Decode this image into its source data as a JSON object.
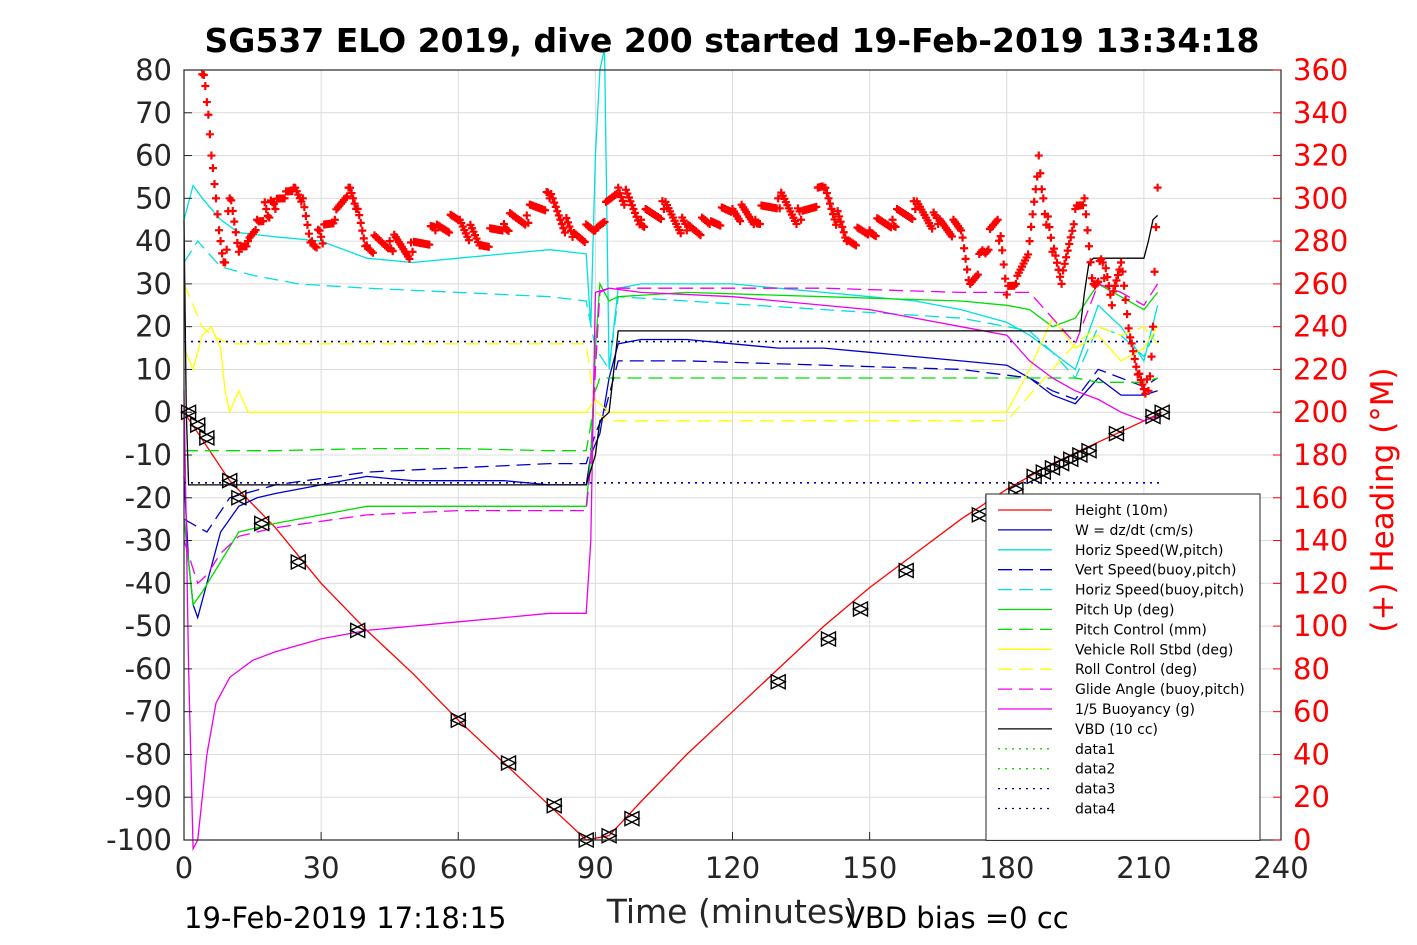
{
  "chart_data": {
    "type": "line",
    "title": "SG537 ELO 2019, dive 200 started 19-Feb-2019 13:34:18",
    "xlabel": "Time (minutes)",
    "ylabel_right": "(+) Heading (°M)",
    "xlim": [
      0,
      240
    ],
    "ylim_left": [
      -100,
      80
    ],
    "ylim_right": [
      0,
      360
    ],
    "x_ticks": [
      "0",
      "30",
      "60",
      "90",
      "120",
      "150",
      "180",
      "210",
      "240"
    ],
    "y_ticks_left": [
      "80",
      "70",
      "60",
      "50",
      "40",
      "30",
      "20",
      "10",
      "0",
      "-10",
      "-20",
      "-30",
      "-40",
      "-50",
      "-60",
      "-70",
      "-80",
      "-90",
      "-100"
    ],
    "y_ticks_right": [
      "360",
      "340",
      "320",
      "300",
      "280",
      "260",
      "240",
      "220",
      "200",
      "180",
      "160",
      "140",
      "120",
      "100",
      "80",
      "60",
      "40",
      "20",
      "0"
    ],
    "grid": true,
    "legend_position": "bottom-right",
    "footer_left": "19-Feb-2019 17:18:15",
    "footer_right": "VBD bias =0 cc",
    "series": [
      {
        "name": "Height (10m)",
        "color": "#ff0000",
        "dash": "solid",
        "x": [
          0,
          10,
          20,
          30,
          40,
          50,
          60,
          70,
          80,
          88,
          93,
          100,
          110,
          120,
          130,
          140,
          150,
          160,
          170,
          180,
          190,
          200,
          210,
          214
        ],
        "y": [
          0,
          -16,
          -27,
          -40,
          -51,
          -61,
          -72,
          -82,
          -92,
          -100,
          -99,
          -91,
          -80,
          -70,
          -60,
          -50,
          -41,
          -33,
          -25,
          -18,
          -12,
          -7,
          -2,
          0
        ]
      },
      {
        "name": "W = dz/dt (cm/s)",
        "color": "#0000cc",
        "dash": "solid",
        "x": [
          0,
          1,
          2,
          3,
          5,
          8,
          12,
          16,
          20,
          30,
          40,
          50,
          60,
          70,
          80,
          88,
          89,
          91,
          93,
          95,
          100,
          110,
          120,
          130,
          140,
          150,
          160,
          170,
          180,
          185,
          190,
          195,
          200,
          205,
          210,
          213
        ],
        "y": [
          -15,
          -35,
          -45,
          -48,
          -40,
          -28,
          -22,
          -20,
          -19,
          -17,
          -15,
          -16,
          -16,
          -16,
          -17,
          -17,
          -10,
          -5,
          8,
          16,
          17,
          17,
          16,
          15,
          15,
          14,
          13,
          12,
          11,
          8,
          4,
          2,
          8,
          4,
          4,
          5
        ]
      },
      {
        "name": "Horiz Speed(W,pitch)",
        "color": "#00e0e0",
        "dash": "solid",
        "x": [
          0,
          2,
          4,
          8,
          12,
          20,
          30,
          40,
          50,
          60,
          70,
          80,
          88,
          89,
          90,
          91,
          92,
          93,
          95,
          100,
          110,
          120,
          130,
          140,
          150,
          160,
          170,
          180,
          185,
          190,
          195,
          200,
          205,
          210,
          213
        ],
        "y": [
          45,
          53,
          50,
          45,
          42,
          41,
          40,
          36,
          35,
          36,
          37,
          38,
          37,
          20,
          60,
          80,
          85,
          10,
          29,
          30,
          30,
          30,
          29,
          28,
          27,
          26,
          24,
          21,
          18,
          14,
          10,
          25,
          20,
          12,
          25
        ]
      },
      {
        "name": "Vert Speed(buoy,pitch)",
        "color": "#0000cc",
        "dash": "long",
        "x": [
          0,
          5,
          10,
          20,
          40,
          60,
          80,
          88,
          90,
          92,
          95,
          110,
          140,
          170,
          185,
          190,
          195,
          200,
          205,
          210,
          213
        ],
        "y": [
          -25,
          -28,
          -20,
          -17,
          -14,
          -13,
          -12,
          -12,
          -5,
          0,
          12,
          12,
          11,
          10,
          8,
          5,
          3,
          10,
          8,
          6,
          8
        ]
      },
      {
        "name": "Horiz Speed(buoy,pitch)",
        "color": "#00e0e0",
        "dash": "long",
        "x": [
          0,
          3,
          8,
          15,
          25,
          40,
          60,
          80,
          88,
          90,
          93,
          95,
          110,
          140,
          170,
          185,
          190,
          195,
          200,
          205,
          210,
          213
        ],
        "y": [
          35,
          40,
          34,
          32,
          30,
          29,
          28,
          27,
          26,
          15,
          10,
          27,
          26,
          24,
          22,
          19,
          14,
          8,
          20,
          18,
          13,
          20
        ]
      },
      {
        "name": "Pitch Up (deg)",
        "color": "#00dd00",
        "dash": "solid",
        "x": [
          0,
          2,
          4,
          8,
          12,
          20,
          30,
          40,
          60,
          80,
          88,
          89,
          90,
          91,
          92,
          93,
          95,
          110,
          140,
          170,
          180,
          185,
          190,
          195,
          200,
          205,
          210,
          213
        ],
        "y": [
          -25,
          -45,
          -42,
          -35,
          -28,
          -26,
          -24,
          -22,
          -22,
          -22,
          -22,
          -10,
          15,
          30,
          28,
          26,
          27,
          28,
          27,
          26,
          25,
          24,
          20,
          22,
          30,
          27,
          24,
          28
        ]
      },
      {
        "name": "Pitch Control (mm)",
        "color": "#00dd00",
        "dash": "long",
        "x": [
          0,
          3,
          5,
          6,
          20,
          40,
          60,
          80,
          88,
          89,
          90,
          91,
          93,
          95,
          110,
          140,
          170,
          185,
          190,
          195,
          200,
          205,
          210,
          213
        ],
        "y": [
          -9,
          -9,
          -9,
          -9,
          -9,
          -8.5,
          -8.5,
          -9,
          -9,
          -3,
          5,
          8,
          8,
          8,
          8,
          8,
          8,
          8,
          8,
          8,
          7,
          7,
          7,
          8
        ]
      },
      {
        "name": "Vehicle Roll Stbd (deg)",
        "color": "#ffff00",
        "dash": "solid",
        "x": [
          0,
          2,
          4,
          6,
          8,
          9,
          10,
          12,
          14,
          20,
          30,
          40,
          50,
          60,
          70,
          80,
          88,
          90,
          93,
          96,
          100,
          120,
          140,
          160,
          170,
          180,
          185,
          190,
          195,
          200,
          205,
          210,
          213
        ],
        "y": [
          15,
          10,
          18,
          20,
          15,
          5,
          0,
          5,
          0,
          0,
          0,
          0,
          0,
          0,
          0,
          0,
          0,
          3,
          0,
          0,
          0,
          0,
          0,
          0,
          0,
          0,
          10,
          22,
          15,
          18,
          12,
          15,
          20
        ]
      },
      {
        "name": "Roll Control (deg)",
        "color": "#ffff00",
        "dash": "long",
        "x": [
          0,
          4,
          6,
          10,
          20,
          40,
          60,
          80,
          88,
          90,
          93,
          96,
          120,
          140,
          160,
          180,
          190,
          195,
          200,
          205,
          210,
          213
        ],
        "y": [
          30,
          20,
          18,
          16,
          16,
          16,
          16,
          16,
          16,
          0,
          -2,
          -2,
          -2,
          -2,
          -2,
          -2,
          10,
          16,
          20,
          18,
          20,
          16
        ]
      },
      {
        "name": "Glide Angle (buoy,pitch)",
        "color": "#ee00ee",
        "dash": "long",
        "x": [
          0,
          3,
          5,
          8,
          12,
          20,
          40,
          60,
          80,
          88,
          89,
          90,
          91,
          93,
          95,
          110,
          140,
          170,
          185,
          190,
          195,
          200,
          205,
          210,
          213
        ],
        "y": [
          -30,
          -40,
          -38,
          -33,
          -29,
          -27,
          -24,
          -23,
          -23,
          -23,
          -12,
          10,
          28,
          29,
          29,
          29,
          29,
          28,
          28,
          22,
          16,
          30,
          28,
          25,
          30
        ]
      },
      {
        "name": "1/5 Buoyancy (g)",
        "color": "#ee00ee",
        "dash": "solid",
        "x": [
          0,
          1,
          2,
          3,
          4,
          5,
          7,
          10,
          15,
          20,
          30,
          40,
          50,
          60,
          70,
          80,
          88,
          89,
          90,
          93,
          100,
          120,
          150,
          170,
          180,
          185,
          190,
          195,
          200,
          205,
          210,
          213
        ],
        "y": [
          5,
          -60,
          -102,
          -100,
          -90,
          -80,
          -68,
          -62,
          -58,
          -56,
          -53,
          -51,
          -50,
          -49,
          -48,
          -47,
          -47,
          -30,
          28,
          29,
          28,
          27,
          24,
          20,
          18,
          12,
          8,
          5,
          3,
          0,
          -2,
          -1
        ]
      },
      {
        "name": "VBD (10 cc)",
        "color": "#000000",
        "dash": "solid",
        "x": [
          0,
          0.5,
          1,
          5,
          10,
          20,
          40,
          60,
          80,
          88,
          90,
          91,
          93,
          95,
          100,
          120,
          150,
          180,
          190,
          196,
          197,
          198,
          199,
          200,
          210,
          211,
          212,
          213
        ],
        "y": [
          45,
          0,
          -17,
          -17,
          -17,
          -17,
          -17,
          -17,
          -17,
          -17,
          -10,
          -2,
          0,
          19,
          19,
          19,
          19,
          19,
          19,
          19,
          28,
          35,
          36,
          36,
          36,
          40,
          45,
          46
        ]
      },
      {
        "name": "data1",
        "color": "#00dd00",
        "dash": "dot",
        "x": [],
        "y": []
      },
      {
        "name": "data2",
        "color": "#00dd00",
        "dash": "dot",
        "x": [],
        "y": []
      },
      {
        "name": "data3",
        "color": "#0000aa",
        "dash": "dot",
        "x": [
          0,
          214
        ],
        "y": [
          16.5,
          16.5
        ]
      },
      {
        "name": "data4",
        "color": "#0000aa",
        "dash": "dot",
        "x": [
          0,
          214
        ],
        "y": [
          -16.5,
          -16.5
        ]
      }
    ],
    "heading_series": {
      "axis": "right",
      "color": "#ff0000",
      "marker": "+",
      "x": [
        4,
        5,
        6,
        7,
        8,
        9,
        10,
        12,
        14,
        16,
        18,
        20,
        22,
        24,
        26,
        28,
        30,
        33,
        36,
        38,
        40,
        45,
        50,
        55,
        60,
        65,
        70,
        75,
        80,
        85,
        90,
        95,
        100,
        105,
        110,
        115,
        120,
        125,
        130,
        135,
        140,
        145,
        150,
        155,
        160,
        165,
        170,
        172,
        175,
        178,
        180,
        182,
        185,
        187,
        188,
        190,
        192,
        195,
        197,
        199,
        201,
        203,
        205,
        207,
        209,
        211,
        212,
        213
      ],
      "y": [
        358,
        345,
        320,
        300,
        280,
        270,
        300,
        275,
        280,
        290,
        295,
        295,
        300,
        305,
        300,
        280,
        282,
        290,
        305,
        295,
        278,
        280,
        275,
        285,
        290,
        278,
        288,
        292,
        300,
        282,
        285,
        305,
        290,
        295,
        285,
        288,
        295,
        290,
        300,
        290,
        305,
        280,
        285,
        290,
        295,
        288,
        285,
        260,
        275,
        290,
        255,
        260,
        280,
        320,
        300,
        275,
        260,
        295,
        300,
        260,
        270,
        250,
        270,
        235,
        218,
        210,
        240,
        305
      ]
    },
    "depth_markers": {
      "x": [
        1,
        3,
        5,
        10,
        12,
        17,
        25,
        38,
        60,
        71,
        81,
        88,
        93,
        98,
        130,
        141,
        148,
        158,
        174,
        177,
        182,
        186,
        188,
        190,
        192,
        194,
        196,
        198,
        204,
        212,
        214
      ],
      "y": [
        0,
        -3,
        -6,
        -16,
        -20,
        -26,
        -35,
        -51,
        -72,
        -82,
        -92,
        -100,
        -99,
        -95,
        -63,
        -53,
        -46,
        -37,
        -24,
        -21,
        -18,
        -15,
        -14,
        -13,
        -12,
        -11,
        -10,
        -9,
        -5,
        -1,
        0
      ]
    }
  }
}
